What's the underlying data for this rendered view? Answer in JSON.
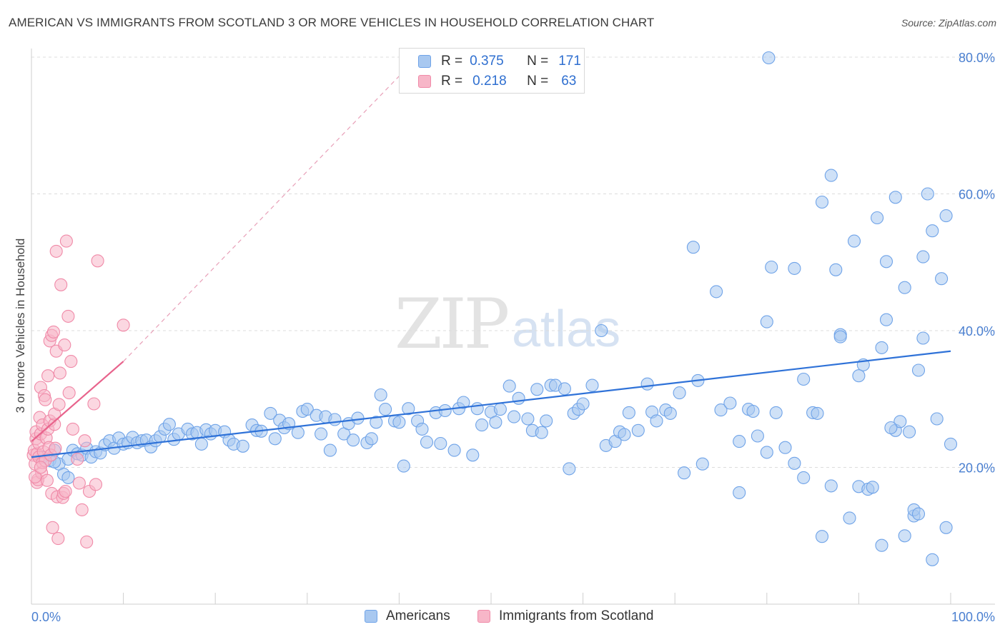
{
  "header": {
    "title": "AMERICAN VS IMMIGRANTS FROM SCOTLAND 3 OR MORE VEHICLES IN HOUSEHOLD CORRELATION CHART",
    "source": "Source: ZipAtlas.com"
  },
  "watermark": {
    "zip": "ZIP",
    "atlas": "atlas"
  },
  "legend": {
    "r_label": "R =",
    "n_label": "N =",
    "rows": [
      {
        "r": "0.375",
        "n": "171",
        "color": "#a8c8f0"
      },
      {
        "r": "0.218",
        "n": "63",
        "color": "#f7b6c8"
      }
    ]
  },
  "bottom_legend": {
    "items": [
      {
        "label": "Americans",
        "color": "#a8c8f0"
      },
      {
        "label": "Immigrants from Scotland",
        "color": "#f7b6c8"
      }
    ]
  },
  "chart_data": {
    "type": "scatter",
    "ylabel": "3 or more Vehicles in Household",
    "xlim": [
      0,
      100
    ],
    "ylim": [
      0,
      80
    ],
    "x_tick_labels": [
      "0.0%",
      "100.0%"
    ],
    "y_ticks": [
      20,
      40,
      60,
      80
    ],
    "y_tick_labels": [
      "20.0%",
      "40.0%",
      "60.0%",
      "80.0%"
    ],
    "grid": true,
    "series": [
      {
        "name": "Americans",
        "color": "#6fa3e8",
        "fill": "#a8c8f0",
        "trend": {
          "x": [
            0,
            100
          ],
          "y": [
            21.5,
            37.0
          ],
          "color": "#2f72d8"
        },
        "points": [
          [
            1.2,
            21.5
          ],
          [
            2.0,
            21.0
          ],
          [
            2.5,
            22.5
          ],
          [
            3.0,
            20.5
          ],
          [
            3.5,
            19.0
          ],
          [
            4.0,
            21.2
          ],
          [
            4.5,
            22.5
          ],
          [
            5.0,
            22.0
          ],
          [
            5.5,
            21.8
          ],
          [
            6.0,
            22.8
          ],
          [
            6.5,
            21.5
          ],
          [
            7.0,
            22.3
          ],
          [
            7.5,
            22.1
          ],
          [
            8.0,
            23.3
          ],
          [
            8.5,
            23.9
          ],
          [
            9.0,
            22.8
          ],
          [
            9.5,
            24.3
          ],
          [
            10.0,
            23.4
          ],
          [
            10.5,
            23.6
          ],
          [
            11.0,
            24.4
          ],
          [
            11.5,
            23.6
          ],
          [
            12.0,
            23.9
          ],
          [
            12.5,
            24.0
          ],
          [
            13.0,
            23.0
          ],
          [
            13.5,
            23.9
          ],
          [
            14.0,
            24.5
          ],
          [
            14.5,
            25.6
          ],
          [
            15.0,
            26.3
          ],
          [
            15.5,
            24.1
          ],
          [
            16.0,
            24.9
          ],
          [
            17.0,
            25.6
          ],
          [
            17.5,
            24.9
          ],
          [
            18.0,
            25.1
          ],
          [
            18.5,
            23.4
          ],
          [
            19.0,
            25.5
          ],
          [
            19.5,
            24.9
          ],
          [
            20.0,
            25.4
          ],
          [
            21.0,
            25.2
          ],
          [
            21.5,
            24.0
          ],
          [
            22.0,
            23.4
          ],
          [
            23.0,
            23.1
          ],
          [
            24.0,
            26.2
          ],
          [
            24.5,
            25.4
          ],
          [
            25.0,
            25.3
          ],
          [
            26.0,
            27.9
          ],
          [
            26.5,
            24.2
          ],
          [
            27.0,
            26.9
          ],
          [
            27.5,
            25.8
          ],
          [
            28.0,
            26.4
          ],
          [
            29.0,
            25.1
          ],
          [
            29.5,
            28.2
          ],
          [
            30.0,
            28.5
          ],
          [
            31.0,
            27.6
          ],
          [
            31.5,
            24.9
          ],
          [
            32.0,
            27.4
          ],
          [
            32.5,
            22.5
          ],
          [
            33.0,
            27.0
          ],
          [
            34.0,
            24.9
          ],
          [
            34.5,
            26.4
          ],
          [
            35.0,
            24.0
          ],
          [
            35.5,
            27.2
          ],
          [
            36.5,
            23.6
          ],
          [
            37.0,
            24.2
          ],
          [
            37.5,
            26.6
          ],
          [
            38.0,
            30.6
          ],
          [
            38.5,
            28.5
          ],
          [
            39.5,
            26.8
          ],
          [
            40.0,
            26.6
          ],
          [
            40.5,
            20.2
          ],
          [
            41.0,
            28.6
          ],
          [
            42.0,
            26.8
          ],
          [
            42.5,
            25.6
          ],
          [
            43.0,
            23.7
          ],
          [
            44.0,
            28.0
          ],
          [
            44.5,
            23.5
          ],
          [
            45.0,
            28.3
          ],
          [
            46.0,
            22.5
          ],
          [
            46.5,
            28.6
          ],
          [
            47.0,
            29.5
          ],
          [
            48.0,
            21.8
          ],
          [
            48.5,
            28.6
          ],
          [
            49.0,
            26.2
          ],
          [
            50.0,
            28.1
          ],
          [
            50.5,
            26.6
          ],
          [
            51.0,
            28.5
          ],
          [
            52.0,
            31.9
          ],
          [
            52.5,
            27.4
          ],
          [
            53.0,
            30.1
          ],
          [
            54.0,
            27.1
          ],
          [
            54.5,
            25.4
          ],
          [
            55.0,
            31.4
          ],
          [
            55.5,
            25.1
          ],
          [
            56.0,
            26.8
          ],
          [
            56.5,
            32.0
          ],
          [
            57.0,
            32.0
          ],
          [
            58.0,
            31.5
          ],
          [
            58.5,
            19.8
          ],
          [
            59.0,
            27.9
          ],
          [
            59.5,
            28.5
          ],
          [
            60.0,
            29.3
          ],
          [
            61.0,
            32.0
          ],
          [
            62.0,
            40.0
          ],
          [
            62.5,
            23.2
          ],
          [
            63.5,
            23.8
          ],
          [
            64.0,
            25.2
          ],
          [
            64.5,
            24.8
          ],
          [
            65.0,
            28.0
          ],
          [
            66.0,
            25.4
          ],
          [
            67.0,
            32.2
          ],
          [
            67.5,
            28.1
          ],
          [
            68.0,
            26.8
          ],
          [
            69.0,
            28.4
          ],
          [
            69.5,
            27.9
          ],
          [
            70.5,
            30.9
          ],
          [
            71.0,
            19.2
          ],
          [
            72.0,
            52.2
          ],
          [
            72.5,
            32.7
          ],
          [
            73.0,
            20.5
          ],
          [
            74.5,
            45.7
          ],
          [
            75.0,
            28.4
          ],
          [
            76.0,
            29.4
          ],
          [
            77.0,
            23.8
          ],
          [
            78.0,
            28.5
          ],
          [
            78.5,
            28.2
          ],
          [
            79.0,
            24.6
          ],
          [
            80.0,
            22.2
          ],
          [
            80.5,
            49.3
          ],
          [
            81.0,
            28.0
          ],
          [
            82.0,
            22.9
          ],
          [
            83.0,
            20.6
          ],
          [
            84.0,
            32.9
          ],
          [
            85.0,
            28.0
          ],
          [
            85.5,
            27.9
          ],
          [
            86.0,
            9.9
          ],
          [
            87.0,
            17.3
          ],
          [
            87.5,
            48.9
          ],
          [
            88.0,
            39.4
          ],
          [
            89.0,
            12.6
          ],
          [
            89.5,
            53.1
          ],
          [
            90.0,
            17.2
          ],
          [
            90.5,
            35.0
          ],
          [
            91.0,
            16.8
          ],
          [
            92.0,
            56.5
          ],
          [
            92.5,
            8.6
          ],
          [
            93.0,
            41.6
          ],
          [
            94.0,
            25.4
          ],
          [
            94.5,
            26.7
          ],
          [
            95.0,
            10.0
          ],
          [
            95.5,
            25.2
          ],
          [
            96.0,
            12.9
          ],
          [
            96.5,
            34.2
          ],
          [
            97.0,
            50.8
          ],
          [
            97.5,
            60.0
          ],
          [
            98.0,
            54.6
          ],
          [
            98.5,
            27.1
          ],
          [
            99.0,
            47.6
          ],
          [
            99.5,
            11.2
          ],
          [
            100.0,
            23.4
          ],
          [
            77.0,
            16.3
          ],
          [
            80.0,
            41.3
          ],
          [
            83.0,
            49.1
          ],
          [
            84.0,
            18.5
          ],
          [
            86.0,
            58.8
          ],
          [
            87.0,
            62.7
          ],
          [
            88.0,
            39.1
          ],
          [
            90.0,
            33.4
          ],
          [
            91.5,
            17.1
          ],
          [
            92.5,
            37.5
          ],
          [
            93.0,
            50.1
          ],
          [
            93.5,
            25.8
          ],
          [
            94.0,
            59.5
          ],
          [
            95.0,
            46.3
          ],
          [
            96.0,
            13.8
          ],
          [
            96.5,
            13.2
          ],
          [
            97.0,
            38.9
          ],
          [
            98.0,
            6.5
          ],
          [
            99.5,
            56.8
          ],
          [
            80.2,
            79.9
          ],
          [
            2.5,
            20.8
          ],
          [
            4.0,
            18.5
          ]
        ]
      },
      {
        "name": "Immigrants from Scotland",
        "color": "#f08aa8",
        "fill": "#f7b6c8",
        "trend": {
          "x": [
            0,
            10
          ],
          "y": [
            23.8,
            35.5
          ],
          "color": "#e8638c",
          "extend_dashed_to": [
            42,
            80
          ]
        },
        "points": [
          [
            0.2,
            21.8
          ],
          [
            0.3,
            22.5
          ],
          [
            0.4,
            20.5
          ],
          [
            0.5,
            24.2
          ],
          [
            0.5,
            25.2
          ],
          [
            0.6,
            22.0
          ],
          [
            0.6,
            17.8
          ],
          [
            0.7,
            18.2
          ],
          [
            0.8,
            21.5
          ],
          [
            0.8,
            23.5
          ],
          [
            0.9,
            27.3
          ],
          [
            1.0,
            24.9
          ],
          [
            1.0,
            31.7
          ],
          [
            1.1,
            19.2
          ],
          [
            1.2,
            20.7
          ],
          [
            1.2,
            26.2
          ],
          [
            1.3,
            22.3
          ],
          [
            1.4,
            30.5
          ],
          [
            1.5,
            21.0
          ],
          [
            1.5,
            29.9
          ],
          [
            1.6,
            24.3
          ],
          [
            1.7,
            18.1
          ],
          [
            1.8,
            33.4
          ],
          [
            1.8,
            25.6
          ],
          [
            1.9,
            22.9
          ],
          [
            2.0,
            26.8
          ],
          [
            2.0,
            38.5
          ],
          [
            2.1,
            21.8
          ],
          [
            2.2,
            39.3
          ],
          [
            2.2,
            16.2
          ],
          [
            2.3,
            11.2
          ],
          [
            2.4,
            39.8
          ],
          [
            2.5,
            26.3
          ],
          [
            2.5,
            27.8
          ],
          [
            2.6,
            22.8
          ],
          [
            2.7,
            37.0
          ],
          [
            2.7,
            51.6
          ],
          [
            2.8,
            15.7
          ],
          [
            2.9,
            9.6
          ],
          [
            3.0,
            29.2
          ],
          [
            3.1,
            33.8
          ],
          [
            3.2,
            46.7
          ],
          [
            3.4,
            15.6
          ],
          [
            3.5,
            16.2
          ],
          [
            3.6,
            37.9
          ],
          [
            3.7,
            16.5
          ],
          [
            3.8,
            53.1
          ],
          [
            4.0,
            42.1
          ],
          [
            4.1,
            30.9
          ],
          [
            4.3,
            35.5
          ],
          [
            4.5,
            25.6
          ],
          [
            5.0,
            21.2
          ],
          [
            5.2,
            17.7
          ],
          [
            5.5,
            13.8
          ],
          [
            5.8,
            23.9
          ],
          [
            6.0,
            9.1
          ],
          [
            6.3,
            16.5
          ],
          [
            6.8,
            29.3
          ],
          [
            7.0,
            17.5
          ],
          [
            7.2,
            50.2
          ],
          [
            10.0,
            40.8
          ],
          [
            0.4,
            18.6
          ],
          [
            1.0,
            20.0
          ]
        ]
      }
    ]
  }
}
